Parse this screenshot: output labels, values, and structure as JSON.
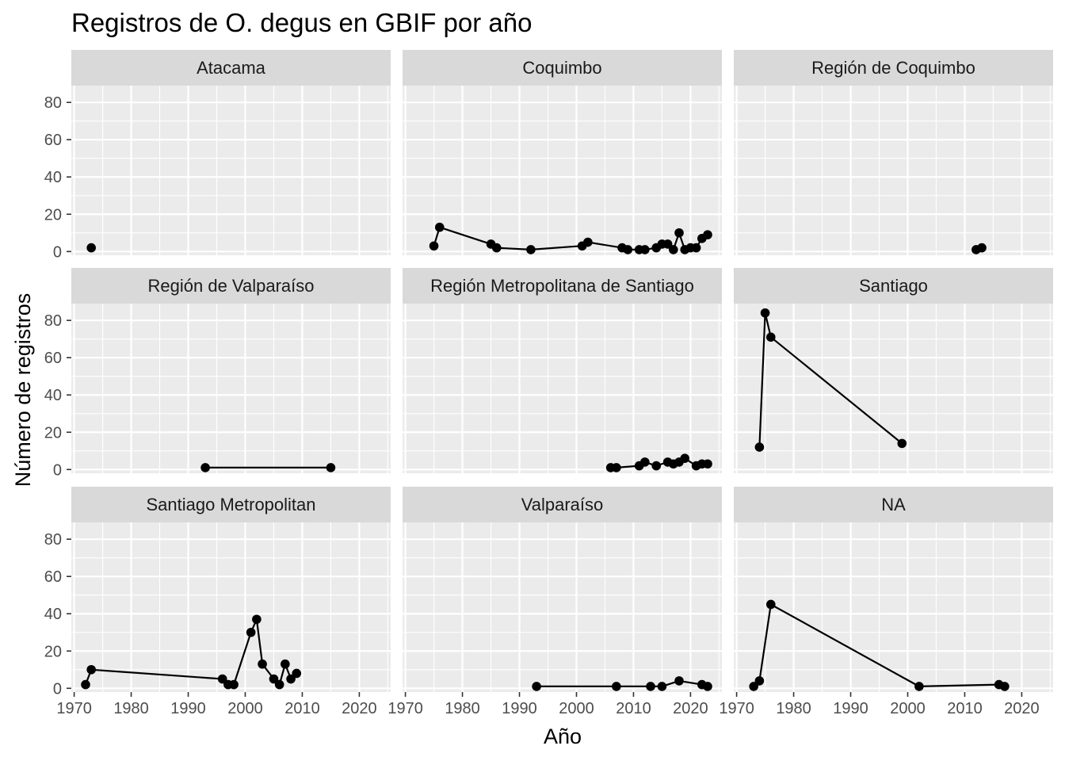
{
  "chart_data": {
    "type": "line",
    "title": "Registros de O. degus en GBIF  por año",
    "xlabel": "Año",
    "ylabel": "Número de registros",
    "xlim": [
      1969.5,
      2025.5
    ],
    "ylim": [
      -2,
      89
    ],
    "x_ticks": [
      1970,
      1980,
      1990,
      2000,
      2010,
      2020
    ],
    "y_ticks": [
      0,
      20,
      40,
      60,
      80
    ],
    "grid": true,
    "facets": [
      {
        "name": "Atacama",
        "x": [
          1973
        ],
        "y": [
          2
        ]
      },
      {
        "name": "Coquimbo",
        "x": [
          1975,
          1976,
          1985,
          1986,
          1992,
          2001,
          2002,
          2008,
          2009,
          2011,
          2012,
          2014,
          2015,
          2016,
          2017,
          2018,
          2019,
          2020,
          2021,
          2022,
          2023
        ],
        "y": [
          3,
          13,
          4,
          2,
          1,
          3,
          5,
          2,
          1,
          1,
          1,
          2,
          4,
          4,
          1,
          10,
          1,
          2,
          2,
          7,
          9
        ]
      },
      {
        "name": "Región de Coquimbo",
        "x": [
          2012,
          2013
        ],
        "y": [
          1,
          2
        ]
      },
      {
        "name": "Región de Valparaíso",
        "x": [
          1993,
          2015
        ],
        "y": [
          1,
          1
        ]
      },
      {
        "name": "Región Metropolitana de Santiago",
        "x": [
          2006,
          2007,
          2011,
          2012,
          2014,
          2016,
          2017,
          2018,
          2019,
          2021,
          2022,
          2023
        ],
        "y": [
          1,
          1,
          2,
          4,
          2,
          4,
          3,
          4,
          6,
          2,
          3,
          3
        ]
      },
      {
        "name": "Santiago",
        "x": [
          1974,
          1975,
          1976,
          1999
        ],
        "y": [
          12,
          84,
          71,
          14
        ]
      },
      {
        "name": "Santiago Metropolitan",
        "x": [
          1972,
          1973,
          1996,
          1997,
          1998,
          2001,
          2002,
          2003,
          2005,
          2006,
          2007,
          2008,
          2009
        ],
        "y": [
          2,
          10,
          5,
          2,
          2,
          30,
          37,
          13,
          5,
          2,
          13,
          5,
          8
        ]
      },
      {
        "name": "Valparaíso",
        "x": [
          1993,
          2007,
          2013,
          2015,
          2018,
          2022,
          2023
        ],
        "y": [
          1,
          1,
          1,
          1,
          4,
          2,
          1
        ]
      },
      {
        "name": "NA",
        "x": [
          1973,
          1974,
          1976,
          2002,
          2016,
          2017
        ],
        "y": [
          1,
          4,
          45,
          1,
          2,
          1
        ]
      }
    ]
  }
}
